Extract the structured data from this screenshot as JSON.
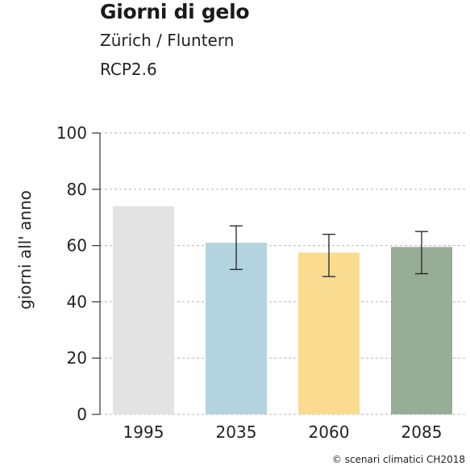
{
  "header": {
    "title": "Giorni di gelo",
    "location": "Zürich / Fluntern",
    "scenario": "RCP2.6"
  },
  "footer": {
    "credit": "© scenari climatici CH2018"
  },
  "chart_data": {
    "type": "bar",
    "title": "Giorni di gelo",
    "ylabel": "giorni all' anno",
    "xlabel": "",
    "ylim": [
      0,
      100
    ],
    "yticks": [
      0,
      20,
      40,
      60,
      80,
      100
    ],
    "grid": true,
    "categories": [
      "1995",
      "2035",
      "2060",
      "2085"
    ],
    "values": [
      74,
      61,
      57.5,
      59.5
    ],
    "error_low": [
      null,
      51.5,
      49,
      50
    ],
    "error_high": [
      null,
      67,
      64,
      65
    ],
    "colors": [
      "#e3e3e3",
      "#b3d4de",
      "#f9dc90",
      "#97ad96"
    ]
  }
}
